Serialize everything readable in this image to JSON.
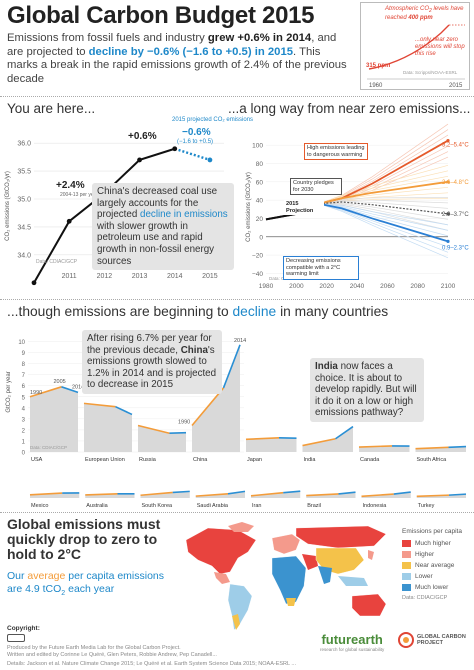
{
  "header": {
    "title": "Global Carbon Budget 2015",
    "intro_1": "Emissions from fossil fuels and industry ",
    "intro_grew": "grew +0.6% in 2014",
    "intro_2": ", and are projected to ",
    "intro_decline": "decline by −0.6% (−1.6 to +0.5) in 2015",
    "intro_3": ". This marks a break in the rapid emissions growth of 2.4% of the previous decade"
  },
  "inset": {
    "text_1": "Atmospheric CO",
    "text_1b": " levels have reached ",
    "value_400": "400 ppm",
    "text_2": "...only near zero emissions will stop this rise",
    "value_315": "315 ppm",
    "source": "Data: Scripps/NOAA-ESRL",
    "year_start": "1960",
    "year_end": "2015",
    "colors": {
      "line": "#e04535"
    }
  },
  "section1": {
    "title": "You are here...",
    "ylabel": "CO₂ emissions (GtCO₂/yr)",
    "annotation_growth": "+2.4%",
    "annotation_growth_sub": "2004-13 per year",
    "annotation_recent": "+0.6%",
    "annotation_proj_label": "2015 projected CO₂ emissions",
    "annotation_proj": "−0.6%",
    "annotation_proj_range": "(−1.6 to +0.5)",
    "callout_1": "China's decreased coal use largely accounts for the projected ",
    "callout_hl": "decline in emissions",
    "callout_2": " with slower growth in petroleum use and rapid growth in non-fossil energy sources",
    "source": "Data: CDIAC/GCP"
  },
  "section2": {
    "title": "...a long way from near zero emissions...",
    "ylabel": "CO₂ emissions (GtCO₂/yr)",
    "label_high": "High emissions leading to dangerous warming",
    "label_pledges": "Country pledges for 2030",
    "label_projection": "2015 Projection",
    "label_low": "Decreasing emissions compatible with a 2°C warming limit",
    "source": "Data: CDIAC/GCP/IPCC/Fuss et al 2014"
  },
  "section3": {
    "title_1": "...though emissions are beginning to ",
    "title_hl": "decline",
    "title_2": " in many countries",
    "ylabel": "GtCO₂ per year",
    "callout_1": "After rising 6.7% per year for the previous decade, ",
    "callout_bold": "China",
    "callout_2": "'s emissions growth slowed to 1.2% in 2014 and is projected to decrease in 2015",
    "india_bold": "India",
    "india_text": " now faces a choice. It is about to develop rapidly. But will it do it on a low or high emissions pathway?",
    "year_1990": "1990",
    "year_2005": "2005",
    "year_2014": "2014",
    "china_1990": "1990",
    "china_2014": "2014",
    "source": "Data: CDIAC/GCP"
  },
  "chart_data": [
    {
      "type": "line",
      "x": [
        2010,
        2011,
        2012,
        2013,
        2014,
        2015
      ],
      "series": [
        {
          "values": [
            33.5,
            34.6,
            35.1,
            35.7,
            35.9,
            35.7
          ]
        }
      ],
      "xlabel": "",
      "ylabel": "CO₂ emissions (GtCO₂/yr)",
      "x_ticks": [
        "2011",
        "2012",
        "2013",
        "2014",
        "2015"
      ],
      "y_ticks": [
        "34.0",
        "34.5",
        "35.0",
        "35.5",
        "36.0"
      ],
      "ylim": [
        33.8,
        36.2
      ],
      "grid": true
    },
    {
      "type": "line",
      "x": [
        1980,
        1990,
        2000,
        2010,
        2015,
        2030,
        2050,
        2100
      ],
      "series": [
        {
          "values": [
            19,
            22,
            25,
            33,
            36,
            42,
            58,
            105
          ]
        },
        {
          "values": [
            19,
            22,
            25,
            33,
            36,
            42,
            48,
            60
          ]
        },
        {
          "values": [
            19,
            22,
            25,
            33,
            36,
            38,
            35,
            25
          ]
        },
        {
          "values": [
            19,
            22,
            25,
            33,
            36,
            31,
            20,
            -5
          ]
        }
      ],
      "x_ticks": [
        "1980",
        "2000",
        "2020",
        "2040",
        "2060",
        "2080",
        "2100"
      ],
      "y_ticks": [
        "−40",
        "−20",
        "0",
        "20",
        "40",
        "60",
        "80",
        "100"
      ],
      "ylim": [
        -45,
        110
      ],
      "end_labels": [
        "3.2–5.4°C",
        "2.6–4.8°C",
        "2.0–3.7°C",
        "0.9–2.3°C"
      ],
      "colors": [
        "#e55a2b",
        "#f39c3a",
        "#555555",
        "#2a7fd4"
      ]
    },
    {
      "type": "area",
      "categories": [
        "USA",
        "European Union",
        "Russia",
        "China",
        "Japan",
        "India",
        "Canada",
        "South Africa",
        "Mexico",
        "Australia",
        "South Korea",
        "Saudi Arabia",
        "Iran",
        "Brazil",
        "Indonesia",
        "Turkey"
      ],
      "y_ticks": [
        "0",
        "1",
        "2",
        "3",
        "4",
        "5",
        "6",
        "7",
        "8",
        "9",
        "10"
      ],
      "ylim": [
        0,
        10.5
      ],
      "series_1990": [
        5.0,
        4.4,
        2.4,
        2.4,
        1.15,
        0.58,
        0.45,
        0.3,
        0.29,
        0.28,
        0.25,
        0.17,
        0.2,
        0.22,
        0.15,
        0.15
      ],
      "series_2005": [
        5.9,
        4.1,
        1.7,
        5.8,
        1.28,
        1.2,
        0.55,
        0.42,
        0.45,
        0.38,
        0.5,
        0.38,
        0.48,
        0.37,
        0.36,
        0.26
      ],
      "series_2014": [
        5.4,
        3.4,
        1.75,
        9.7,
        1.25,
        2.3,
        0.54,
        0.49,
        0.46,
        0.38,
        0.6,
        0.6,
        0.62,
        0.53,
        0.54,
        0.35
      ],
      "colors": {
        "area": "#d9d9d9",
        "pre2005": "#f39c3a",
        "post2005": "#2a8fd4"
      }
    }
  ],
  "section4": {
    "title": "Global emissions must quickly drop to zero to hold to 2°C",
    "avg_1": "Our ",
    "avg_hl": "average",
    "avg_2": " per capita emissions are ",
    "avg_value": "4.9 tCO",
    "avg_3": " each year",
    "legend_title": "Emissions per capita",
    "legend": [
      {
        "label": "Much higher",
        "color": "#e8433e"
      },
      {
        "label": "Higher",
        "color": "#f49a8c"
      },
      {
        "label": "Near average",
        "color": "#f4c24a"
      },
      {
        "label": "Lower",
        "color": "#9ecde8"
      },
      {
        "label": "Much lower",
        "color": "#3b93cf"
      }
    ],
    "source": "Data: CDIAC/GCP"
  },
  "footer": {
    "copyright": "Copyright:",
    "credits_1": "Produced by the Future Earth Media Lab for the Global Carbon Project.",
    "credits_2": "Written and edited by Corinne Le Quéré, Glen Peters, Robbie Andrew, Pep Canadell...",
    "credits_3": "Details: Jackson et al. Nature Climate Change 2015; Le Quéré et al. Earth System Science Data 2015; NOAA-ESRL ...",
    "logo_futurearth": "futurearth",
    "logo_futurearth_sub": "research for global sustainability",
    "logo_gcp_1": "GLOBAL CARBON",
    "logo_gcp_2": "PROJECT"
  }
}
